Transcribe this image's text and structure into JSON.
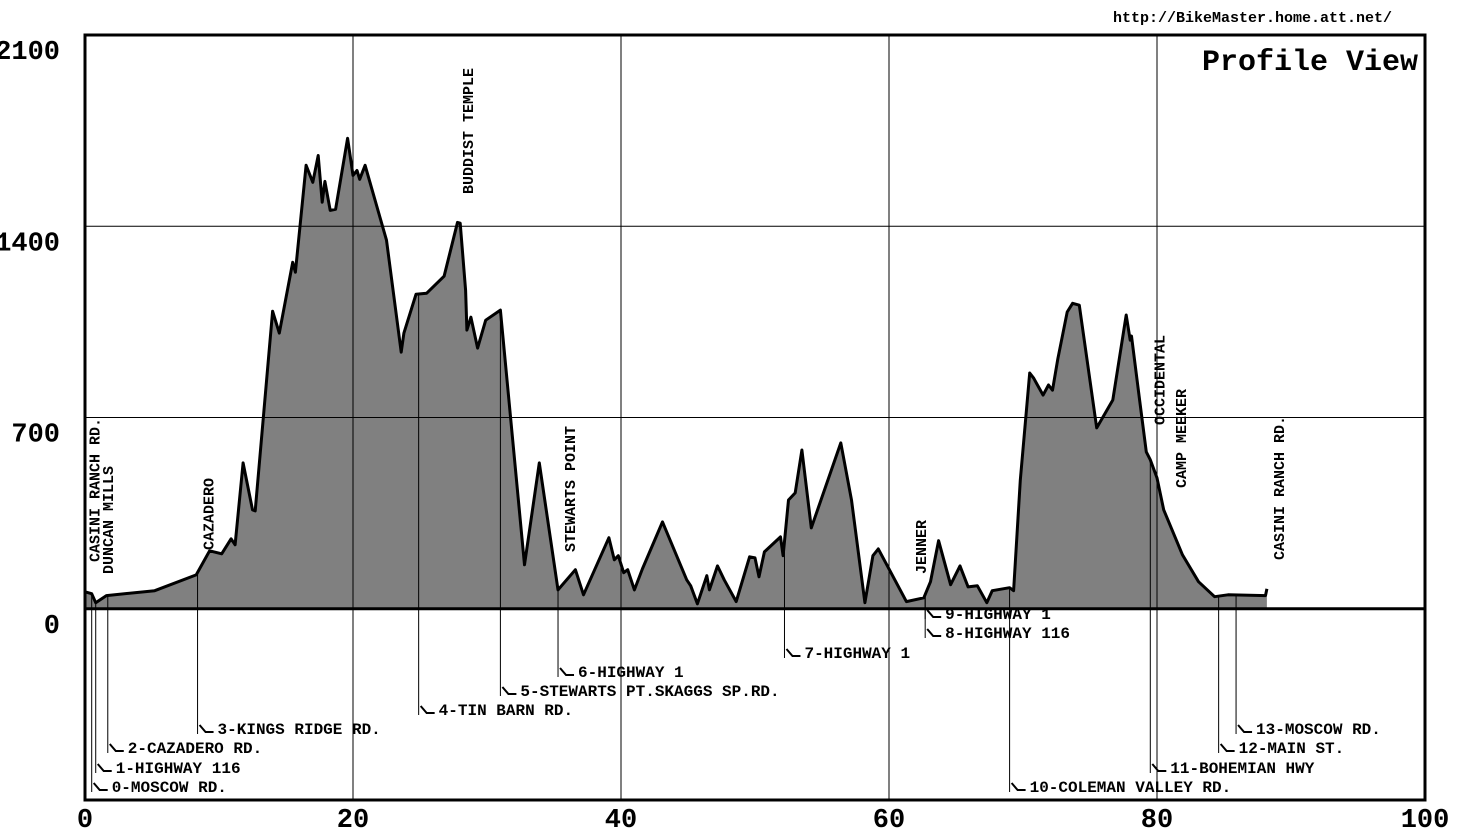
{
  "chart_data": {
    "type": "area",
    "title": "Profile View",
    "source": "http://BikeMaster.home.att.net/",
    "x": [
      0,
      0.5,
      0.8,
      1.6,
      5.2,
      8.3,
      9.3,
      10.2,
      10.9,
      11.2,
      11.8,
      12.5,
      12.7,
      14.0,
      14.5,
      15.5,
      15.7,
      16.5,
      17.0,
      17.4,
      17.7,
      17.9,
      18.3,
      18.7,
      19.6,
      20.0,
      20.3,
      20.5,
      20.9,
      22.5,
      23.6,
      23.8,
      24.7,
      25.5,
      26.8,
      27.8,
      28.0,
      28.4,
      28.5,
      28.8,
      29.3,
      29.9,
      31.0,
      32.8,
      33.9,
      35.3,
      36.6,
      37.2,
      39.1,
      39.5,
      39.8,
      40.2,
      40.5,
      41.0,
      41.6,
      43.1,
      44.9,
      45.2,
      45.7,
      46.4,
      46.6,
      47.2,
      47.7,
      48.6,
      49.6,
      50.0,
      50.3,
      50.7,
      51.9,
      52.1,
      52.5,
      53.0,
      53.5,
      54.2,
      56.4,
      57.2,
      58.2,
      58.8,
      59.2,
      61.3,
      62.6,
      63.1,
      63.7,
      64.6,
      65.3,
      65.9,
      66.6,
      67.3,
      67.7,
      69.0,
      69.3,
      69.8,
      70.5,
      70.8,
      71.0,
      71.5,
      71.9,
      72.2,
      72.6,
      73.3,
      73.7,
      74.2,
      75.5,
      76.7,
      77.7,
      78.0,
      78.1,
      78.7,
      79.2,
      79.5,
      80.0,
      80.5,
      81.9,
      83.1,
      84.3,
      85.3,
      88.1,
      88.2
    ],
    "values": [
      62,
      55,
      22,
      48,
      66,
      124,
      212,
      201,
      256,
      234,
      534,
      362,
      358,
      1089,
      1009,
      1268,
      1232,
      1623,
      1561,
      1659,
      1488,
      1564,
      1458,
      1462,
      1722,
      1586,
      1604,
      1572,
      1623,
      1349,
      939,
      1009,
      1151,
      1155,
      1217,
      1414,
      1411,
      1166,
      1020,
      1067,
      954,
      1056,
      1093,
      161,
      534,
      69,
      143,
      51,
      260,
      179,
      194,
      132,
      143,
      69,
      146,
      318,
      106,
      84,
      18,
      121,
      69,
      157,
      106,
      26,
      190,
      186,
      117,
      208,
      263,
      194,
      398,
      424,
      581,
      296,
      607,
      398,
      22,
      194,
      219,
      26,
      40,
      99,
      249,
      88,
      157,
      80,
      84,
      22,
      66,
      77,
      66,
      471,
      863,
      844,
      826,
      782,
      819,
      800,
      914,
      1086,
      1118,
      1111,
      662,
      764,
      1075,
      983,
      998,
      764,
      574,
      545,
      479,
      362,
      197,
      99,
      44,
      51,
      48,
      73
    ],
    "color": "#808080",
    "xlim": [
      0,
      100
    ],
    "xticks": [
      0,
      20,
      40,
      60,
      80,
      100
    ],
    "ylim": [
      -700,
      2100
    ],
    "yticks": [
      0,
      700,
      1400,
      2100
    ],
    "grid": true,
    "places": [
      {
        "x": 0.7,
        "label": "CASINI RANCH RD."
      },
      {
        "x": 1.7,
        "label": "DUNCAN MILLS"
      },
      {
        "x": 9.2,
        "label": "CAZADERO"
      },
      {
        "x": 28.6,
        "label": "BUDDIST TEMPLE"
      },
      {
        "x": 36.2,
        "label": "STEWARTS POINT"
      },
      {
        "x": 62.4,
        "label": "JENNER"
      },
      {
        "x": 80.2,
        "label": "OCCIDENTAL"
      },
      {
        "x": 81.8,
        "label": "CAMP MEEKER"
      },
      {
        "x": 89.1,
        "label": "CASINI RANCH RD."
      }
    ],
    "waypoints": [
      {
        "x": 0.5,
        "label": "0-MOSCOW RD."
      },
      {
        "x": 0.8,
        "label": "1-HIGHWAY 116"
      },
      {
        "x": 1.7,
        "label": "2-CAZADERO RD."
      },
      {
        "x": 8.4,
        "label": "3-KINGS RIDGE RD."
      },
      {
        "x": 24.9,
        "label": "4-TIN BARN RD."
      },
      {
        "x": 31.0,
        "label": "5-STEWARTS PT.SKAGGS SP.RD."
      },
      {
        "x": 35.3,
        "label": "6-HIGHWAY 1"
      },
      {
        "x": 52.2,
        "label": "7-HIGHWAY 1"
      },
      {
        "x": 62.7,
        "label": "8-HIGHWAY 116"
      },
      {
        "x": 62.7,
        "label": "9-HIGHWAY 1"
      },
      {
        "x": 69.0,
        "label": "10-COLEMAN VALLEY RD."
      },
      {
        "x": 79.5,
        "label": "11-BOHEMIAN HWY"
      },
      {
        "x": 84.6,
        "label": "12-MAIN ST."
      },
      {
        "x": 85.9,
        "label": "13-MOSCOW RD."
      }
    ]
  }
}
